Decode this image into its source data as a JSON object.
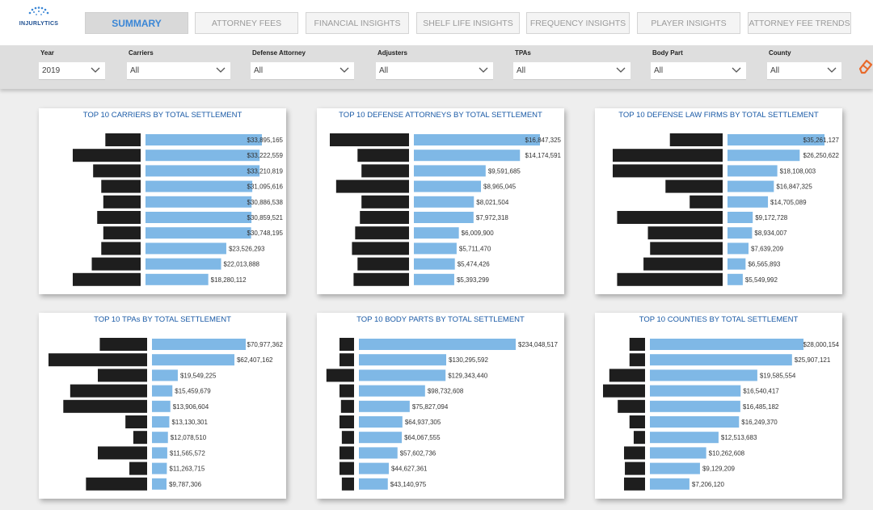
{
  "app": {
    "logo_text": "INJURLYTICS"
  },
  "tabs": [
    {
      "label": "SUMMARY",
      "active": true
    },
    {
      "label": "ATTORNEY FEES",
      "active": false
    },
    {
      "label": "FINANCIAL INSIGHTS",
      "active": false
    },
    {
      "label": "SHELF LIFE INSIGHTS",
      "active": false
    },
    {
      "label": "FREQUENCY INSIGHTS",
      "active": false
    },
    {
      "label": "PLAYER INSIGHTS",
      "active": false
    },
    {
      "label": "ATTORNEY FEE TRENDS",
      "active": false
    }
  ],
  "filters": [
    {
      "label": "Year",
      "value": "2019"
    },
    {
      "label": "Carriers",
      "value": "All"
    },
    {
      "label": "Defense Attorney",
      "value": "All"
    },
    {
      "label": "Adjusters",
      "value": "All"
    },
    {
      "label": "TPAs",
      "value": "All"
    },
    {
      "label": "Body Part",
      "value": "All"
    },
    {
      "label": "County",
      "value": "All"
    }
  ],
  "colors": {
    "bar": "#7fb8e6",
    "redaction": "#1e1e1e",
    "accent": "#3a86d6",
    "title": "#1a5aa6",
    "eraser": "#e8692a"
  },
  "icons": {
    "eraser": "eraser-icon",
    "dropdown": "chevron-down-icon"
  },
  "chart_data": [
    {
      "type": "bar",
      "orientation": "horizontal",
      "title": "TOP 10 CARRIERS BY TOTAL SETTLEMENT",
      "categories_redacted": true,
      "values": [
        33895165,
        33222559,
        33210819,
        31095616,
        30886538,
        30859521,
        30748195,
        23526293,
        22013888,
        18280112
      ],
      "labels": [
        "$33,895,165",
        "$33,222,559",
        "$33,210,819",
        "$31,095,616",
        "$30,886,538",
        "$30,859,521",
        "$30,748,195",
        "$23,526,293",
        "$22,013,888",
        "$18,280,112"
      ]
    },
    {
      "type": "bar",
      "orientation": "horizontal",
      "title": "TOP 10 DEFENSE ATTORNEYS BY TOTAL SETTLEMENT",
      "categories_redacted": true,
      "values": [
        16847325,
        14174591,
        9591685,
        8965045,
        8021504,
        7972318,
        6009900,
        5711470,
        5474426,
        5393299
      ],
      "labels": [
        "$16,847,325",
        "$14,174,591",
        "$9,591,685",
        "$8,965,045",
        "$8,021,504",
        "$7,972,318",
        "$6,009,900",
        "$5,711,470",
        "$5,474,426",
        "$5,393,299"
      ]
    },
    {
      "type": "bar",
      "orientation": "horizontal",
      "title": "TOP 10 DEFENSE LAW FIRMS BY TOTAL SETTLEMENT",
      "categories_redacted": true,
      "values": [
        35261127,
        26250622,
        18108003,
        16847325,
        14705089,
        9172728,
        8934007,
        7639209,
        6565893,
        5549992
      ],
      "labels": [
        "$35,261,127",
        "$26,250,622",
        "$18,108,003",
        "$16,847,325",
        "$14,705,089",
        "$9,172,728",
        "$8,934,007",
        "$7,639,209",
        "$6,565,893",
        "$5,549,992"
      ]
    },
    {
      "type": "bar",
      "orientation": "horizontal",
      "title": "TOP 10 TPAs BY TOTAL SETTLEMENT",
      "categories_redacted": true,
      "values": [
        70977362,
        62407162,
        19549225,
        15459679,
        13906604,
        13130301,
        12078510,
        11565572,
        11263715,
        9787306
      ],
      "labels": [
        "$70,977,362",
        "$62,407,162",
        "$19,549,225",
        "$15,459,679",
        "$13,906,604",
        "$13,130,301",
        "$12,078,510",
        "$11,565,572",
        "$11,263,715",
        "$9,787,306"
      ]
    },
    {
      "type": "bar",
      "orientation": "horizontal",
      "title": "TOP 10 BODY PARTS BY TOTAL SETTLEMENT",
      "categories_redacted": true,
      "values": [
        234048517,
        130295592,
        129343440,
        98732608,
        75827094,
        64937305,
        64067555,
        57602736,
        44627361,
        43140975
      ],
      "labels": [
        "$234,048,517",
        "$130,295,592",
        "$129,343,440",
        "$98,732,608",
        "$75,827,094",
        "$64,937,305",
        "$64,067,555",
        "$57,602,736",
        "$44,627,361",
        "$43,140,975"
      ]
    },
    {
      "type": "bar",
      "orientation": "horizontal",
      "title": "TOP 10 COUNTIES BY TOTAL SETTLEMENT",
      "categories_redacted": true,
      "values": [
        28000154,
        25907121,
        19585554,
        16540417,
        16485182,
        16249370,
        12513683,
        10262608,
        9129209,
        7206120
      ],
      "labels": [
        "$28,000,154",
        "$25,907,121",
        "$19,585,554",
        "$16,540,417",
        "$16,485,182",
        "$16,249,370",
        "$12,513,683",
        "$10,262,608",
        "$9,129,209",
        "$7,206,120"
      ]
    }
  ]
}
